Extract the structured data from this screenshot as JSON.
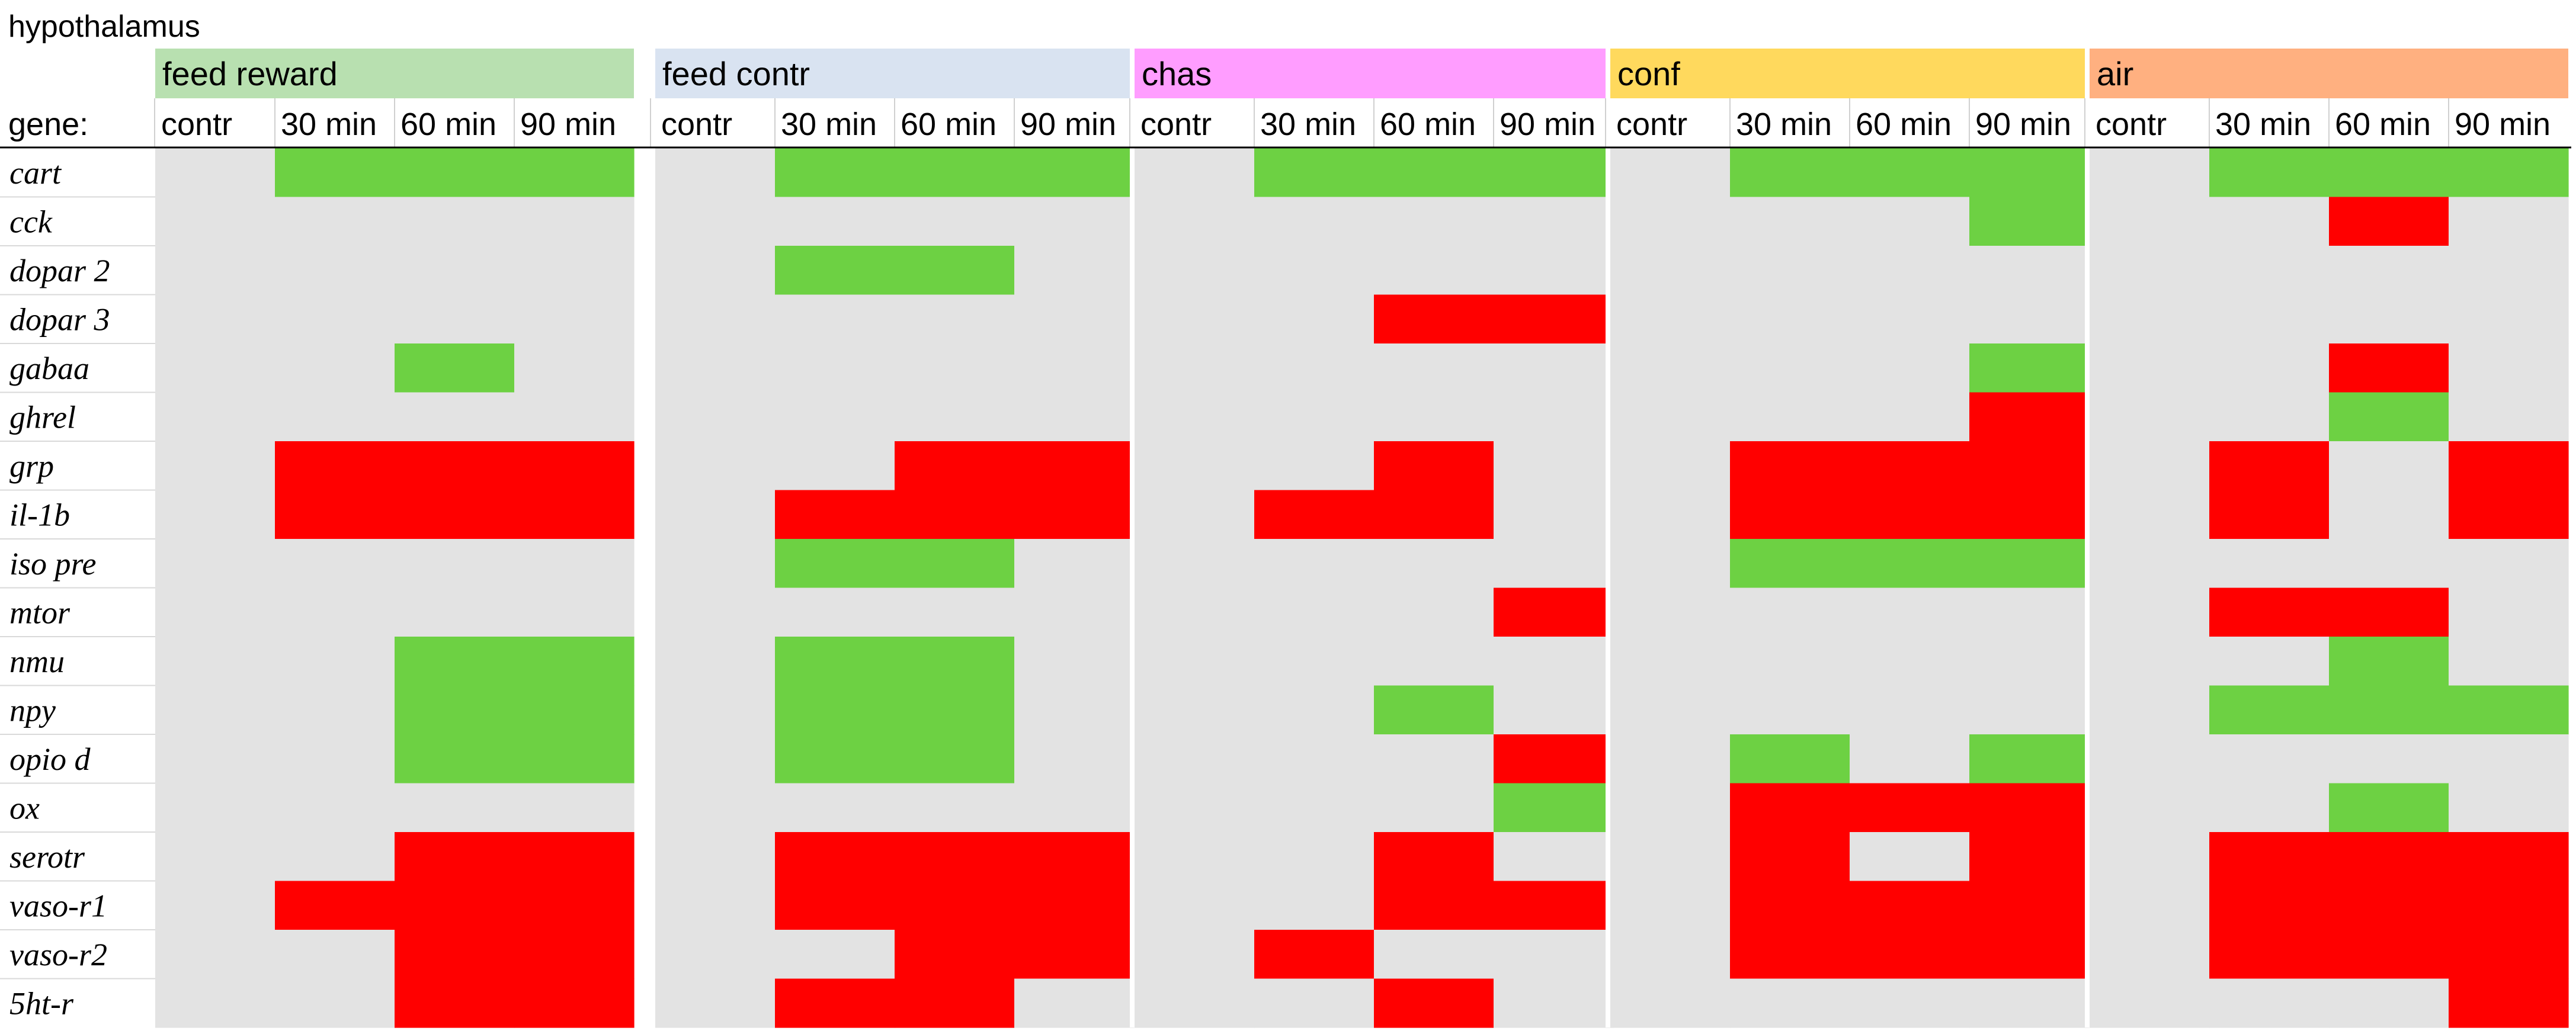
{
  "chart_data": {
    "type": "heatmap",
    "title": "hypothalamus",
    "row_header": "gene:",
    "columns": [
      "contr",
      "30 min",
      "60 min",
      "90 min"
    ],
    "legend": {
      "1": "green (up)",
      "-1": "red (down)",
      "0": "none"
    },
    "colors": {
      "up": "#6dd143",
      "down": "#ff0000",
      "none": "#e3e3e3",
      "separator": "#ffffff"
    },
    "genes": [
      "cart",
      "cck",
      "dopar 2",
      "dopar 3",
      "gabaa",
      "ghrel",
      "grp",
      "il-1b",
      "iso pre",
      "mtor",
      "nmu",
      "npy",
      "opio d",
      "ox",
      "serotr",
      "vaso-r1",
      "vaso-r2",
      "5ht-r"
    ],
    "groups": [
      {
        "name": "feed reward",
        "color": "#b8e0b0",
        "values": [
          [
            0,
            1,
            1,
            1
          ],
          [
            0,
            0,
            0,
            0
          ],
          [
            0,
            0,
            0,
            0
          ],
          [
            0,
            0,
            0,
            0
          ],
          [
            0,
            0,
            1,
            0
          ],
          [
            0,
            0,
            0,
            0
          ],
          [
            0,
            -1,
            -1,
            -1
          ],
          [
            0,
            -1,
            -1,
            -1
          ],
          [
            0,
            0,
            0,
            0
          ],
          [
            0,
            0,
            0,
            0
          ],
          [
            0,
            0,
            1,
            1
          ],
          [
            0,
            0,
            1,
            1
          ],
          [
            0,
            0,
            1,
            1
          ],
          [
            0,
            0,
            0,
            0
          ],
          [
            0,
            0,
            -1,
            -1
          ],
          [
            0,
            -1,
            -1,
            -1
          ],
          [
            0,
            0,
            -1,
            -1
          ],
          [
            0,
            0,
            -1,
            -1
          ]
        ]
      },
      {
        "name": "feed contr",
        "color": "#d9e3f1",
        "values": [
          [
            0,
            1,
            1,
            1
          ],
          [
            0,
            0,
            0,
            0
          ],
          [
            0,
            1,
            1,
            0
          ],
          [
            0,
            0,
            0,
            0
          ],
          [
            0,
            0,
            0,
            0
          ],
          [
            0,
            0,
            0,
            0
          ],
          [
            0,
            0,
            -1,
            -1
          ],
          [
            0,
            -1,
            -1,
            -1
          ],
          [
            0,
            1,
            1,
            0
          ],
          [
            0,
            0,
            0,
            0
          ],
          [
            0,
            1,
            1,
            0
          ],
          [
            0,
            1,
            1,
            0
          ],
          [
            0,
            1,
            1,
            0
          ],
          [
            0,
            0,
            0,
            0
          ],
          [
            0,
            -1,
            -1,
            -1
          ],
          [
            0,
            -1,
            -1,
            -1
          ],
          [
            0,
            0,
            -1,
            -1
          ],
          [
            0,
            -1,
            -1,
            0
          ]
        ]
      },
      {
        "name": "chas",
        "color": "#ff9dff",
        "values": [
          [
            0,
            1,
            1,
            1
          ],
          [
            0,
            0,
            0,
            0
          ],
          [
            0,
            0,
            0,
            0
          ],
          [
            0,
            0,
            -1,
            -1
          ],
          [
            0,
            0,
            0,
            0
          ],
          [
            0,
            0,
            0,
            0
          ],
          [
            0,
            0,
            -1,
            0
          ],
          [
            0,
            -1,
            -1,
            0
          ],
          [
            0,
            0,
            0,
            0
          ],
          [
            0,
            0,
            0,
            -1
          ],
          [
            0,
            0,
            0,
            0
          ],
          [
            0,
            0,
            1,
            0
          ],
          [
            0,
            0,
            0,
            -1
          ],
          [
            0,
            0,
            0,
            1
          ],
          [
            0,
            0,
            -1,
            0
          ],
          [
            0,
            0,
            -1,
            -1
          ],
          [
            0,
            -1,
            0,
            0
          ],
          [
            0,
            0,
            -1,
            0
          ]
        ]
      },
      {
        "name": "conf",
        "color": "#ffd95d",
        "values": [
          [
            0,
            1,
            1,
            1
          ],
          [
            0,
            0,
            0,
            1
          ],
          [
            0,
            0,
            0,
            0
          ],
          [
            0,
            0,
            0,
            0
          ],
          [
            0,
            0,
            0,
            1
          ],
          [
            0,
            0,
            0,
            -1
          ],
          [
            0,
            -1,
            -1,
            -1
          ],
          [
            0,
            -1,
            -1,
            -1
          ],
          [
            0,
            1,
            1,
            1
          ],
          [
            0,
            0,
            0,
            0
          ],
          [
            0,
            0,
            0,
            0
          ],
          [
            0,
            0,
            0,
            0
          ],
          [
            0,
            1,
            0,
            1
          ],
          [
            0,
            -1,
            -1,
            -1
          ],
          [
            0,
            -1,
            0,
            -1
          ],
          [
            0,
            -1,
            -1,
            -1
          ],
          [
            0,
            -1,
            -1,
            -1
          ],
          [
            0,
            0,
            0,
            0
          ]
        ]
      },
      {
        "name": "air",
        "color": "#ffb080",
        "values": [
          [
            0,
            1,
            1,
            1
          ],
          [
            0,
            0,
            -1,
            0
          ],
          [
            0,
            0,
            0,
            0
          ],
          [
            0,
            0,
            0,
            0
          ],
          [
            0,
            0,
            -1,
            0
          ],
          [
            0,
            0,
            1,
            0
          ],
          [
            0,
            -1,
            0,
            -1
          ],
          [
            0,
            -1,
            0,
            -1
          ],
          [
            0,
            0,
            0,
            0
          ],
          [
            0,
            -1,
            -1,
            0
          ],
          [
            0,
            0,
            1,
            0
          ],
          [
            0,
            1,
            1,
            1
          ],
          [
            0,
            0,
            0,
            0
          ],
          [
            0,
            0,
            1,
            0
          ],
          [
            0,
            -1,
            -1,
            -1
          ],
          [
            0,
            -1,
            -1,
            -1
          ],
          [
            0,
            -1,
            -1,
            -1
          ],
          [
            0,
            0,
            0,
            -1
          ]
        ]
      }
    ]
  }
}
